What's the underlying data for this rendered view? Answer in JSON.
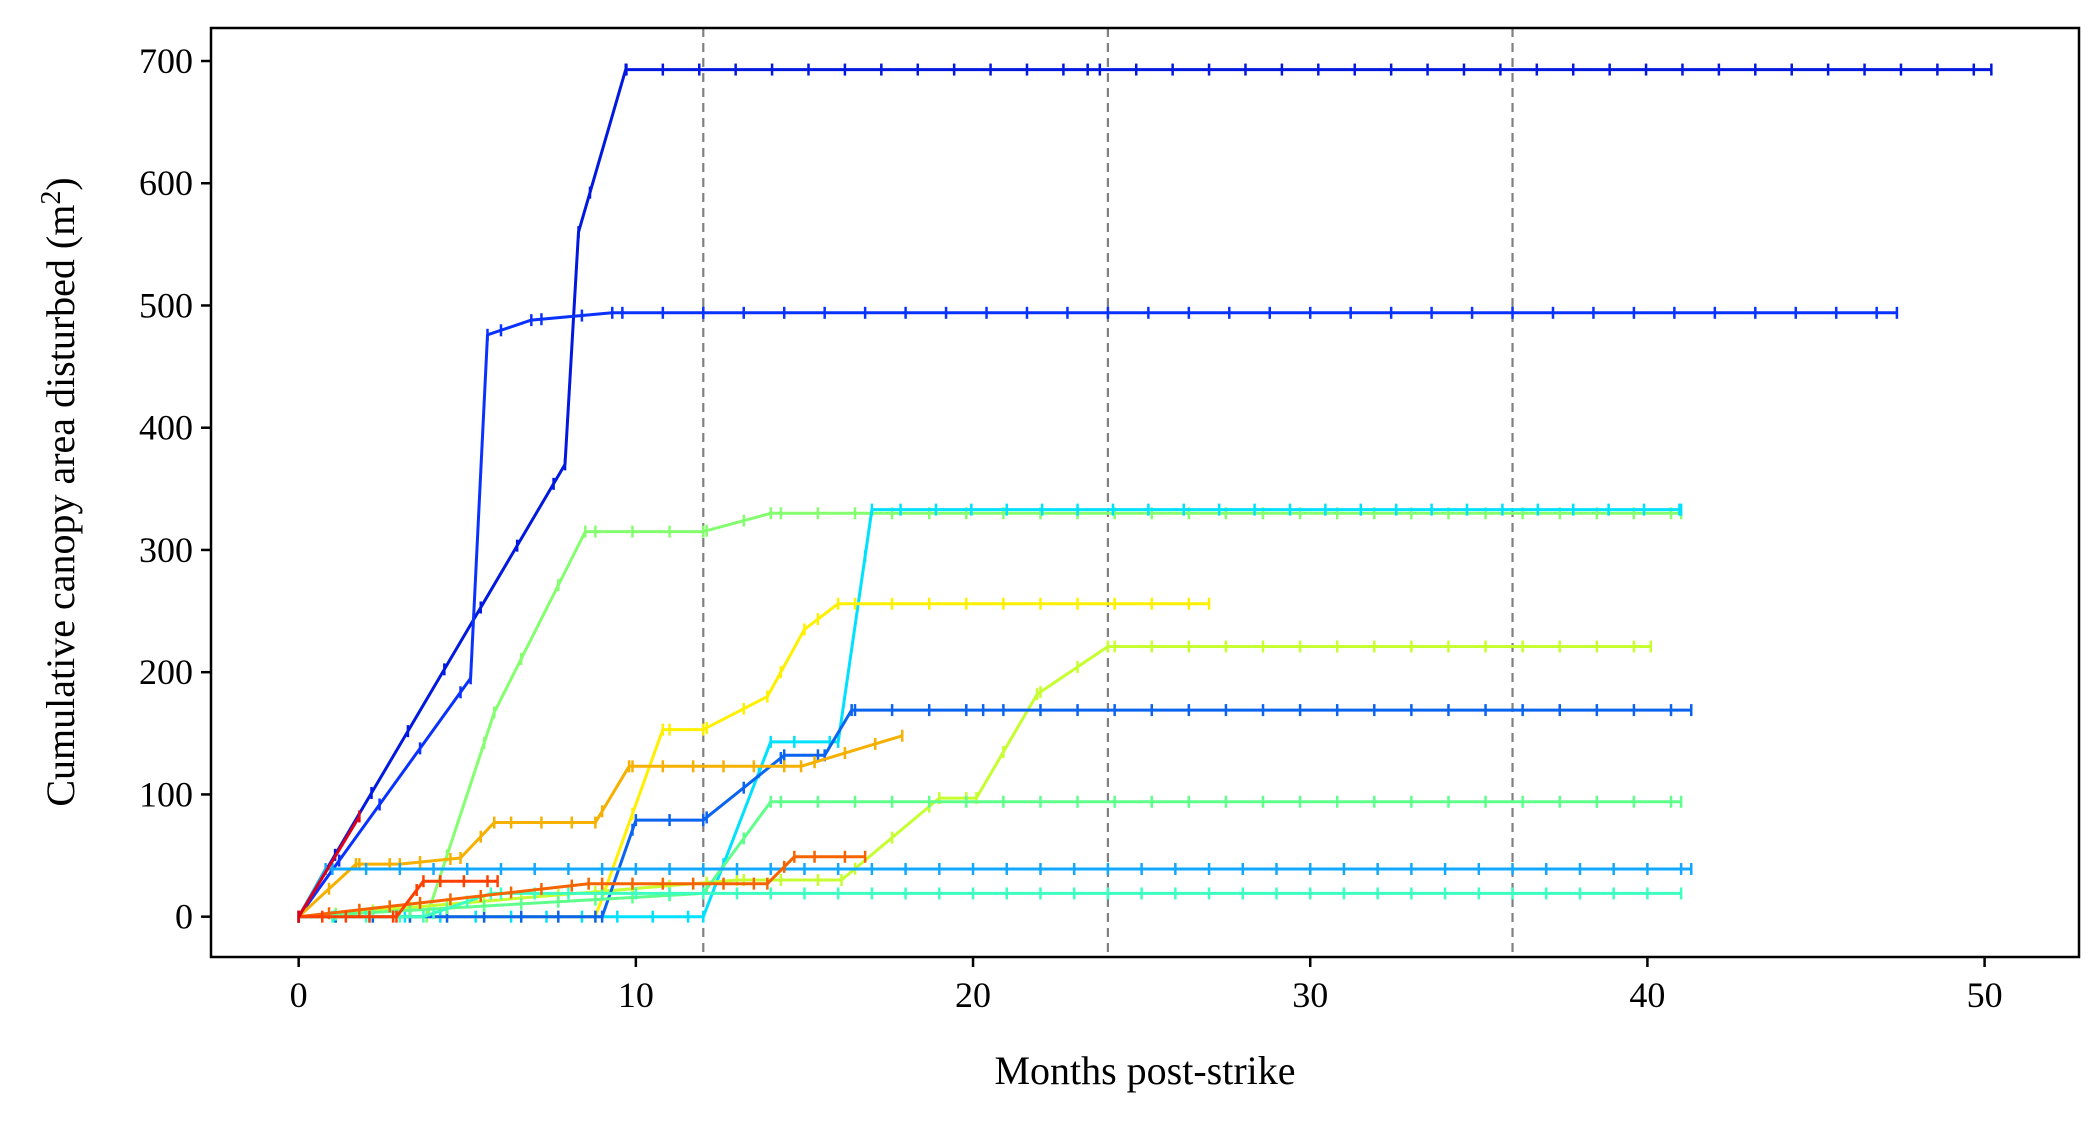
{
  "chart_data": {
    "type": "line",
    "title": "",
    "xlabel": "Months post-strike",
    "ylabel_main": "Cumulative canopy area disturbed (m",
    "ylabel_sup": "2",
    "ylabel_end": ")",
    "xlim": [
      -2.6,
      52.8
    ],
    "ylim": [
      -33,
      727
    ],
    "xticks": [
      0,
      10,
      20,
      30,
      40,
      50
    ],
    "yticks": [
      0,
      100,
      200,
      300,
      400,
      500,
      600,
      700
    ],
    "grid": false,
    "legend": "none",
    "reference_lines_x": [
      12,
      24,
      36
    ],
    "series": [
      {
        "color": "#0018e0",
        "x": [
          0,
          7.9,
          8.3,
          9.7,
          23.4,
          50.2
        ],
        "y": [
          0,
          370,
          560,
          693,
          693,
          693
        ],
        "ticks_every": 1.08
      },
      {
        "color": "#0a32ff",
        "x": [
          0,
          5.1,
          5.6,
          6.9,
          9.3,
          47.4
        ],
        "y": [
          0,
          195,
          476,
          488,
          494,
          494
        ],
        "ticks_every": 1.2
      },
      {
        "color": "#84ff6e",
        "x": [
          0,
          3.8,
          5.8,
          8.5,
          12.0,
          14.0,
          41.0
        ],
        "y": [
          0,
          0,
          167,
          315,
          315,
          330,
          330
        ],
        "ticks_every": 1.1
      },
      {
        "color": "#00e0ff",
        "x": [
          0,
          12.0,
          14.0,
          16.0,
          17.0,
          41.0
        ],
        "y": [
          0,
          0,
          143,
          143,
          333,
          333
        ],
        "ticks_every": 1.05
      },
      {
        "color": "#fff000",
        "x": [
          0,
          8.8,
          10.8,
          12.0,
          13.9,
          15.0,
          16.0,
          27.0
        ],
        "y": [
          0,
          0,
          153,
          153,
          180,
          235,
          256,
          256
        ],
        "ticks_every": 1.1
      },
      {
        "color": "#c6ff30",
        "x": [
          0,
          13.0,
          16.1,
          19.0,
          20.1,
          21.9,
          24.0,
          40.1
        ],
        "y": [
          0,
          30,
          30,
          97,
          97,
          182,
          221,
          221
        ],
        "ticks_every": 1.1
      },
      {
        "color": "#0a64f0",
        "x": [
          0,
          9.0,
          10.0,
          12.0,
          14.4,
          15.6,
          16.4,
          20.3,
          41.3
        ],
        "y": [
          0,
          0,
          79,
          79,
          132,
          132,
          169,
          169,
          169
        ],
        "ticks_every": 1.1
      },
      {
        "color": "#f5b000",
        "x": [
          0,
          1.7,
          3.0,
          4.8,
          5.8,
          8.8,
          9.8,
          14.9,
          17.9
        ],
        "y": [
          0,
          43,
          43,
          48,
          77,
          77,
          123,
          123,
          148
        ],
        "ticks_every": 0.9
      },
      {
        "color": "#5eff8a",
        "x": [
          0,
          12.0,
          14.0,
          41.0
        ],
        "y": [
          0,
          19,
          94,
          94
        ],
        "ticks_every": 1.1
      },
      {
        "color": "#12a8ff",
        "x": [
          0,
          0.8,
          41.3
        ],
        "y": [
          0,
          39,
          39
        ],
        "ticks_every": 1.0
      },
      {
        "color": "#3cffc0",
        "x": [
          0,
          3.7,
          5.7,
          41.0
        ],
        "y": [
          0,
          0,
          19,
          19
        ],
        "ticks_every": 1.0
      },
      {
        "color": "#f56400",
        "x": [
          0,
          8.6,
          13.9,
          14.7,
          16.8
        ],
        "y": [
          0,
          27,
          27,
          49,
          49
        ],
        "ticks_every": 0.9
      },
      {
        "color": "#ff4000",
        "x": [
          0,
          2.9,
          3.7,
          5.9
        ],
        "y": [
          0,
          0,
          29,
          29
        ],
        "ticks_every": 0.7
      },
      {
        "color": "#dd0018",
        "x": [
          0,
          1.8
        ],
        "y": [
          0,
          82
        ],
        "ticks_every": 1.8
      }
    ]
  }
}
